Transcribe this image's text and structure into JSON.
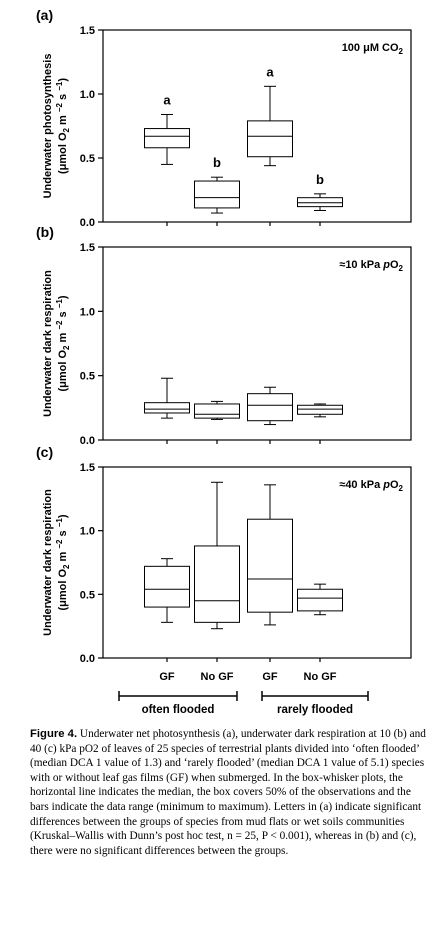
{
  "chart_data": [
    {
      "type": "box",
      "panel": "(a)",
      "annotation": "100 μM CO2",
      "ylabel_line1": "Underwater photosynthesis",
      "ylabel_line2": "(μmol O2 m−2 s−1)",
      "ylim": [
        0,
        1.5
      ],
      "yticks": [
        "0.0",
        "0.5",
        "1.0",
        "1.5"
      ],
      "categories": [
        "GF",
        "No GF",
        "GF",
        "No GF"
      ],
      "boxes": [
        {
          "min": 0.45,
          "q1": 0.58,
          "median": 0.67,
          "q3": 0.73,
          "max": 0.84,
          "letter": "a"
        },
        {
          "min": 0.07,
          "q1": 0.11,
          "median": 0.19,
          "q3": 0.32,
          "max": 0.35,
          "letter": "b"
        },
        {
          "min": 0.44,
          "q1": 0.51,
          "median": 0.67,
          "q3": 0.79,
          "max": 1.06,
          "letter": "a"
        },
        {
          "min": 0.09,
          "q1": 0.12,
          "median": 0.15,
          "q3": 0.19,
          "max": 0.22,
          "letter": "b"
        }
      ]
    },
    {
      "type": "box",
      "panel": "(b)",
      "annotation": "≈10 kPa pO2",
      "ylabel_line1": "Underwater dark respiration",
      "ylabel_line2": "(μmol O2 m−2 s−1)",
      "ylim": [
        0,
        1.5
      ],
      "yticks": [
        "0.0",
        "0.5",
        "1.0",
        "1.5"
      ],
      "categories": [
        "GF",
        "No GF",
        "GF",
        "No GF"
      ],
      "boxes": [
        {
          "min": 0.17,
          "q1": 0.21,
          "median": 0.24,
          "q3": 0.29,
          "max": 0.48
        },
        {
          "min": 0.16,
          "q1": 0.17,
          "median": 0.2,
          "q3": 0.28,
          "max": 0.3
        },
        {
          "min": 0.12,
          "q1": 0.15,
          "median": 0.27,
          "q3": 0.36,
          "max": 0.41
        },
        {
          "min": 0.18,
          "q1": 0.2,
          "median": 0.24,
          "q3": 0.27,
          "max": 0.28
        }
      ]
    },
    {
      "type": "box",
      "panel": "(c)",
      "annotation": "≈40 kPa pO2",
      "ylabel_line1": "Underwater dark respiration",
      "ylabel_line2": "(μmol O2 m−2 s−1)",
      "ylim": [
        0,
        1.5
      ],
      "yticks": [
        "0.0",
        "0.5",
        "1.0",
        "1.5"
      ],
      "categories": [
        "GF",
        "No GF",
        "GF",
        "No GF"
      ],
      "groups": [
        "often flooded",
        "rarely flooded"
      ],
      "boxes": [
        {
          "min": 0.28,
          "q1": 0.4,
          "median": 0.54,
          "q3": 0.72,
          "max": 0.78
        },
        {
          "min": 0.23,
          "q1": 0.28,
          "median": 0.45,
          "q3": 0.88,
          "max": 1.38
        },
        {
          "min": 0.26,
          "q1": 0.36,
          "median": 0.62,
          "q3": 1.09,
          "max": 1.36
        },
        {
          "min": 0.34,
          "q1": 0.37,
          "median": 0.47,
          "q3": 0.54,
          "max": 0.58
        }
      ]
    }
  ],
  "caption": {
    "label": "Figure 4.",
    "text": "Underwater net photosynthesis (a), underwater dark respiration at 10 (b) and 40 (c) kPa pO2 of leaves of 25 species of terrestrial plants divided into ‘often flooded’ (median DCA 1 value of 1.3) and ‘rarely flooded’ (median DCA 1 value of 5.1) species with or without leaf gas films (GF) when submerged. In the box-whisker plots, the horizontal line indicates the median, the box covers 50% of the observations and the bars indicate the data range (minimum to maximum). Letters in (a) indicate significant differences between the groups of species from mud flats or wet soils communities (Kruskal–Wallis with Dunn’s post hoc test, n = 25, P < 0.001), whereas in (b) and (c), there were no significant differences between the groups."
  }
}
